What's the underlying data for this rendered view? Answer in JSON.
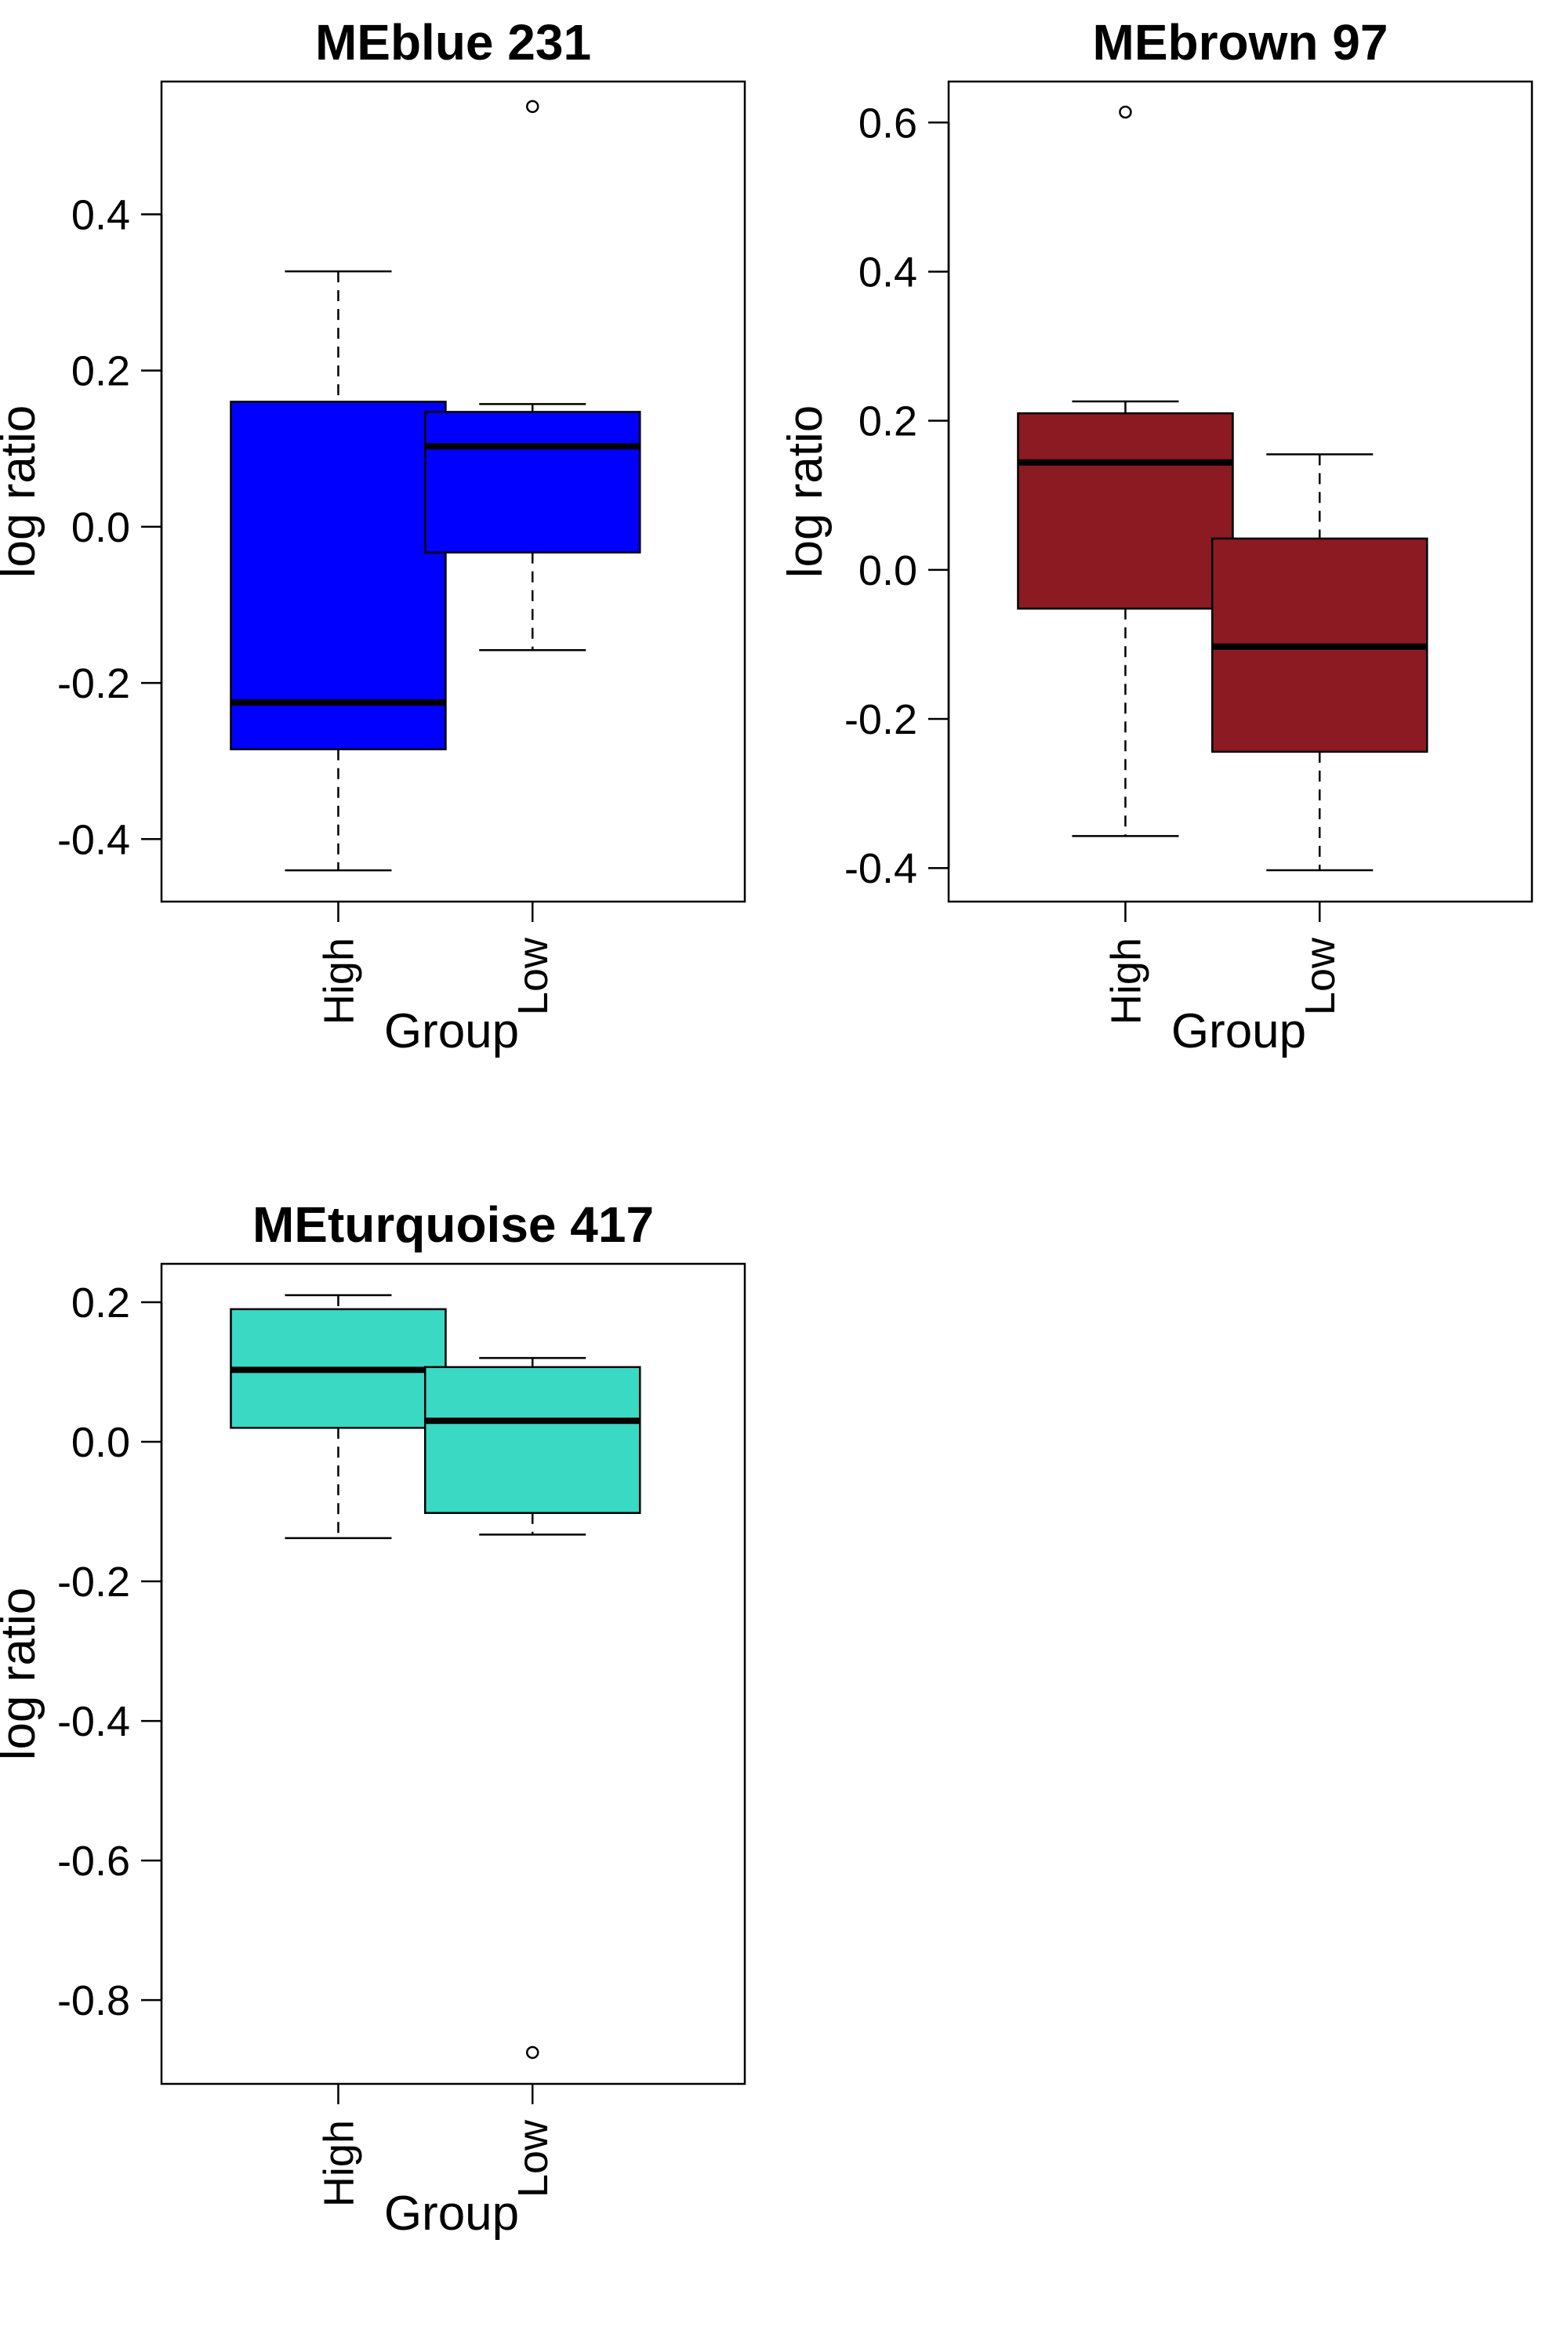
{
  "chart_data": [
    {
      "type": "box",
      "title": "MEblue 231",
      "xlabel": "Group",
      "ylabel": "log ratio",
      "categories": [
        "High",
        "Low"
      ],
      "yticks": [
        "-0.4",
        "-0.2",
        "0.0",
        "0.2",
        "0.4"
      ],
      "ylim": [
        -0.48,
        0.57
      ],
      "fill": "#0000ff",
      "boxes": [
        {
          "category": "High",
          "whisker_low": -0.44,
          "q1": -0.285,
          "median": -0.225,
          "q3": 0.16,
          "whisker_high": 0.327,
          "outliers": []
        },
        {
          "category": "Low",
          "whisker_low": -0.158,
          "q1": -0.033,
          "median": 0.103,
          "q3": 0.147,
          "whisker_high": 0.157,
          "outliers": [
            0.538
          ]
        }
      ]
    },
    {
      "type": "box",
      "title": "MEbrown 97",
      "xlabel": "Group",
      "ylabel": "log ratio",
      "categories": [
        "High",
        "Low"
      ],
      "yticks": [
        "-0.4",
        "-0.2",
        "0.0",
        "0.2",
        "0.4",
        "0.6"
      ],
      "ylim": [
        -0.445,
        0.655
      ],
      "fill": "#8b1a22",
      "boxes": [
        {
          "category": "High",
          "whisker_low": -0.357,
          "q1": -0.052,
          "median": 0.144,
          "q3": 0.21,
          "whisker_high": 0.226,
          "outliers": [
            0.614
          ]
        },
        {
          "category": "Low",
          "whisker_low": -0.403,
          "q1": -0.244,
          "median": -0.103,
          "q3": 0.042,
          "whisker_high": 0.155,
          "outliers": []
        }
      ]
    },
    {
      "type": "box",
      "title": "MEturquoise 417",
      "xlabel": "Group",
      "ylabel": "log ratio",
      "categories": [
        "High",
        "Low"
      ],
      "yticks": [
        "-0.8",
        "-0.6",
        "-0.4",
        "-0.2",
        "0.0",
        "0.2"
      ],
      "ylim": [
        -0.92,
        0.255
      ],
      "fill": "#3ad9c4",
      "boxes": [
        {
          "category": "High",
          "whisker_low": -0.138,
          "q1": 0.02,
          "median": 0.103,
          "q3": 0.19,
          "whisker_high": 0.21,
          "outliers": []
        },
        {
          "category": "Low",
          "whisker_low": -0.133,
          "q1": -0.102,
          "median": 0.03,
          "q3": 0.107,
          "whisker_high": 0.12,
          "outliers": [
            -0.875
          ]
        }
      ]
    }
  ]
}
